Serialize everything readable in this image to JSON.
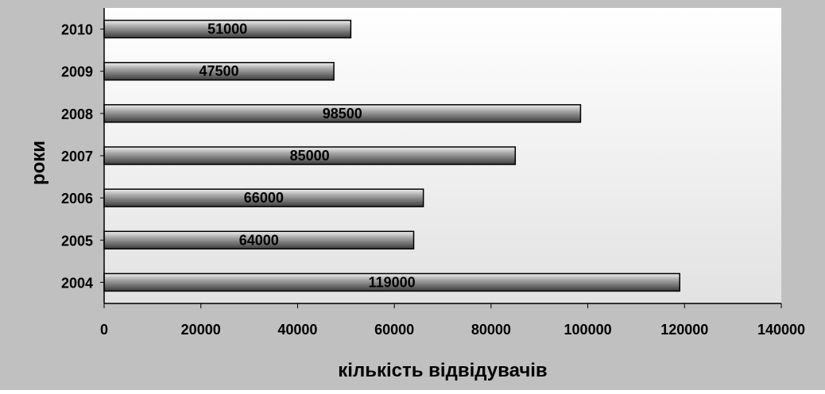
{
  "chart_data": {
    "type": "bar",
    "orientation": "horizontal",
    "categories": [
      "2004",
      "2005",
      "2006",
      "2007",
      "2008",
      "2009",
      "2010"
    ],
    "values": [
      119000,
      64000,
      66000,
      85000,
      98500,
      47500,
      51000
    ],
    "data_labels": [
      "119000",
      "64000",
      "66000",
      "85000",
      "98500",
      "47500",
      "51000"
    ],
    "xlabel": "кількість відвідувачів",
    "ylabel": "роки",
    "xlim": [
      0,
      140000
    ],
    "x_ticks": [
      0,
      20000,
      40000,
      60000,
      80000,
      100000,
      120000,
      140000
    ],
    "x_tick_labels": [
      "0",
      "20000",
      "40000",
      "60000",
      "80000",
      "100000",
      "120000",
      "140000"
    ],
    "grid": false,
    "legend": "none",
    "colors": {
      "outer_background": "#c0c0c0",
      "plot_background_top": "#ffffff",
      "plot_background_bottom": "#e2e2e2",
      "bar_light": "#f0f0f0",
      "bar_mid": "#a8a8a8",
      "bar_dark": "#3c3c3c"
    }
  }
}
